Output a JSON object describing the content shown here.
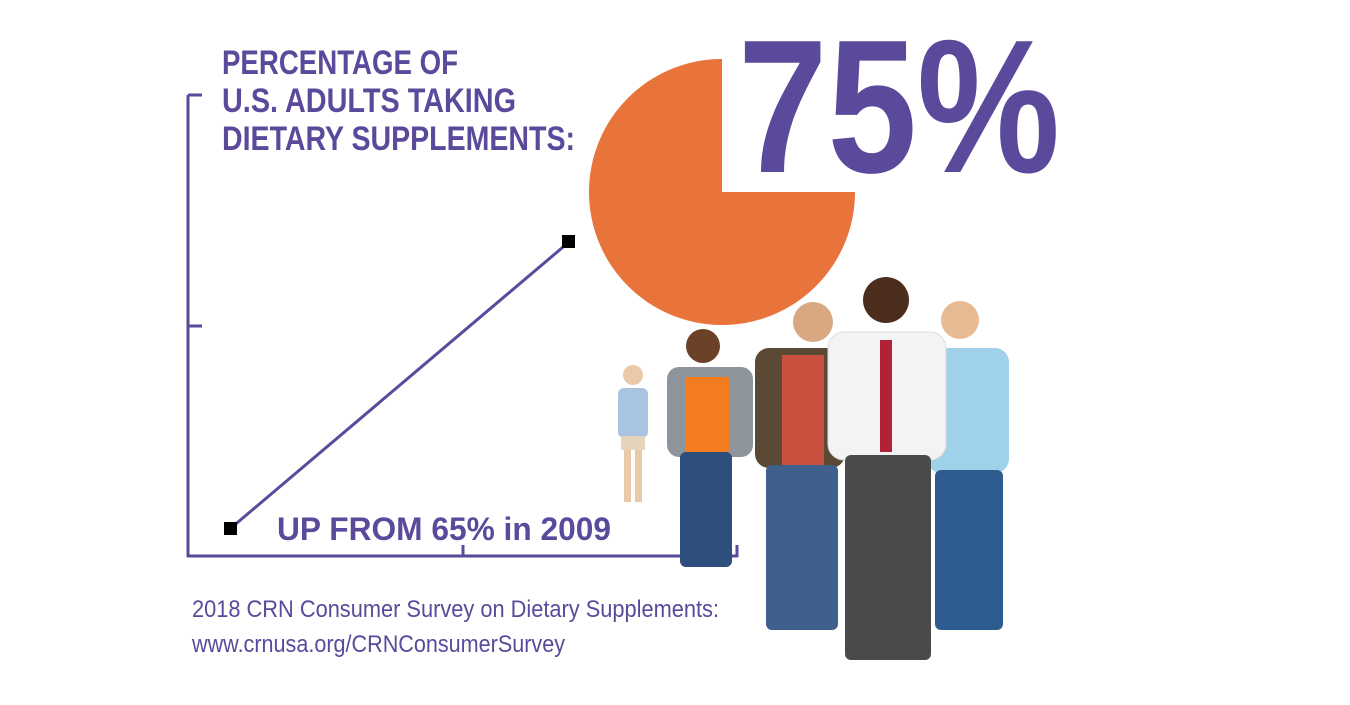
{
  "chart_data": {
    "type": "pie",
    "title": [
      "PERCENTAGE OF",
      "U.S. ADULTS TAKING",
      "DIETARY SUPPLEMENTS:"
    ],
    "values": [
      75
    ],
    "value_labels": [
      "75%"
    ],
    "color": "#e8743b",
    "annotation": "UP FROM 65% in 2009",
    "source": [
      "2018 CRN Consumer Survey on Dietary Supplements:",
      "www.crnusa.org/CRNConsumerSurvey"
    ]
  }
}
